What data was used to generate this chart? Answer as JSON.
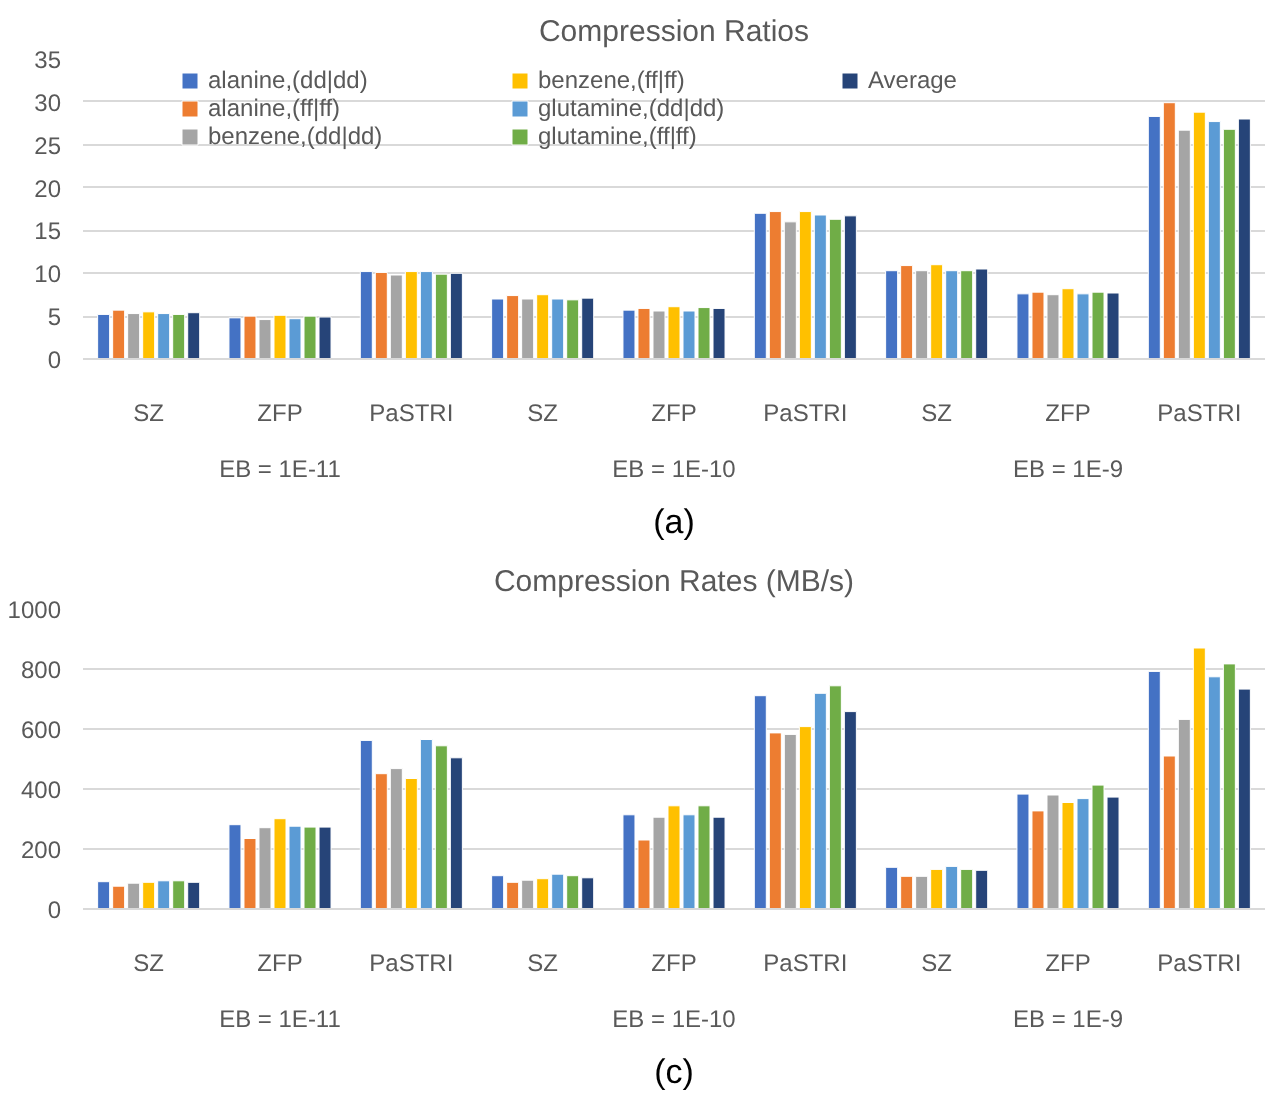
{
  "chart_data": [
    {
      "type": "bar",
      "title": "Compression Ratios",
      "categories": [
        "SZ",
        "ZFP",
        "PaSTRI",
        "SZ",
        "ZFP",
        "PaSTRI",
        "SZ",
        "ZFP",
        "PaSTRI"
      ],
      "annotations": [
        "EB = 1E-11",
        "EB = 1E-10",
        "EB = 1E-9",
        "(a)"
      ],
      "ylim": [
        0,
        35
      ],
      "yticks": [
        0,
        5,
        10,
        15,
        20,
        25,
        30,
        35
      ],
      "grid": "y",
      "legend": "top",
      "series": [
        {
          "name": "alanine,(dd|dd)",
          "color": "#4472c4",
          "values": [
            5.2,
            4.8,
            10.2,
            7.0,
            5.7,
            17.0,
            10.3,
            7.6,
            28.3
          ]
        },
        {
          "name": "alanine,(ff|ff)",
          "color": "#ed7d31",
          "values": [
            5.7,
            5.0,
            10.1,
            7.4,
            5.9,
            17.2,
            10.9,
            7.8,
            29.9
          ]
        },
        {
          "name": "benzene,(dd|dd)",
          "color": "#a5a5a5",
          "values": [
            5.3,
            4.6,
            9.8,
            7.0,
            5.6,
            16.0,
            10.3,
            7.5,
            26.7
          ]
        },
        {
          "name": "benzene,(ff|ff)",
          "color": "#ffc000",
          "values": [
            5.5,
            5.1,
            10.2,
            7.5,
            6.1,
            17.2,
            11.0,
            8.2,
            28.8
          ]
        },
        {
          "name": "glutamine,(dd|dd)",
          "color": "#5b9bd5",
          "values": [
            5.3,
            4.7,
            10.2,
            7.0,
            5.6,
            16.8,
            10.3,
            7.6,
            27.7
          ]
        },
        {
          "name": "glutamine,(ff|ff)",
          "color": "#70ad47",
          "values": [
            5.2,
            5.0,
            9.9,
            6.9,
            6.0,
            16.3,
            10.3,
            7.8,
            26.8
          ]
        },
        {
          "name": "Average",
          "color": "#264478",
          "values": [
            5.4,
            4.9,
            10.0,
            7.1,
            5.9,
            16.7,
            10.5,
            7.7,
            28.0
          ]
        }
      ]
    },
    {
      "type": "bar",
      "title": "Compression Rates (MB/s)",
      "categories": [
        "SZ",
        "ZFP",
        "PaSTRI",
        "SZ",
        "ZFP",
        "PaSTRI",
        "SZ",
        "ZFP",
        "PaSTRI"
      ],
      "annotations": [
        "EB = 1E-11",
        "EB = 1E-10",
        "EB = 1E-9",
        "(c)"
      ],
      "ylim": [
        0,
        1000
      ],
      "yticks": [
        0,
        200,
        400,
        600,
        800,
        1000
      ],
      "grid": "y",
      "series": [
        {
          "color": "#4472c4",
          "values": [
            91,
            281,
            562,
            111,
            314,
            711,
            139,
            383,
            792
          ]
        },
        {
          "color": "#ed7d31",
          "values": [
            76,
            235,
            451,
            89,
            230,
            587,
            109,
            327,
            510
          ]
        },
        {
          "color": "#a5a5a5",
          "values": [
            86,
            271,
            468,
            96,
            306,
            582,
            109,
            380,
            632
          ]
        },
        {
          "color": "#ffc000",
          "values": [
            89,
            301,
            435,
            101,
            344,
            608,
            132,
            355,
            870
          ]
        },
        {
          "color": "#5b9bd5",
          "values": [
            94,
            276,
            565,
            116,
            314,
            719,
            142,
            368,
            774
          ]
        },
        {
          "color": "#70ad47",
          "values": [
            94,
            273,
            544,
            111,
            344,
            744,
            132,
            413,
            817
          ]
        },
        {
          "color": "#264478",
          "values": [
            89,
            273,
            504,
            104,
            306,
            658,
            129,
            373,
            733
          ]
        }
      ]
    }
  ]
}
